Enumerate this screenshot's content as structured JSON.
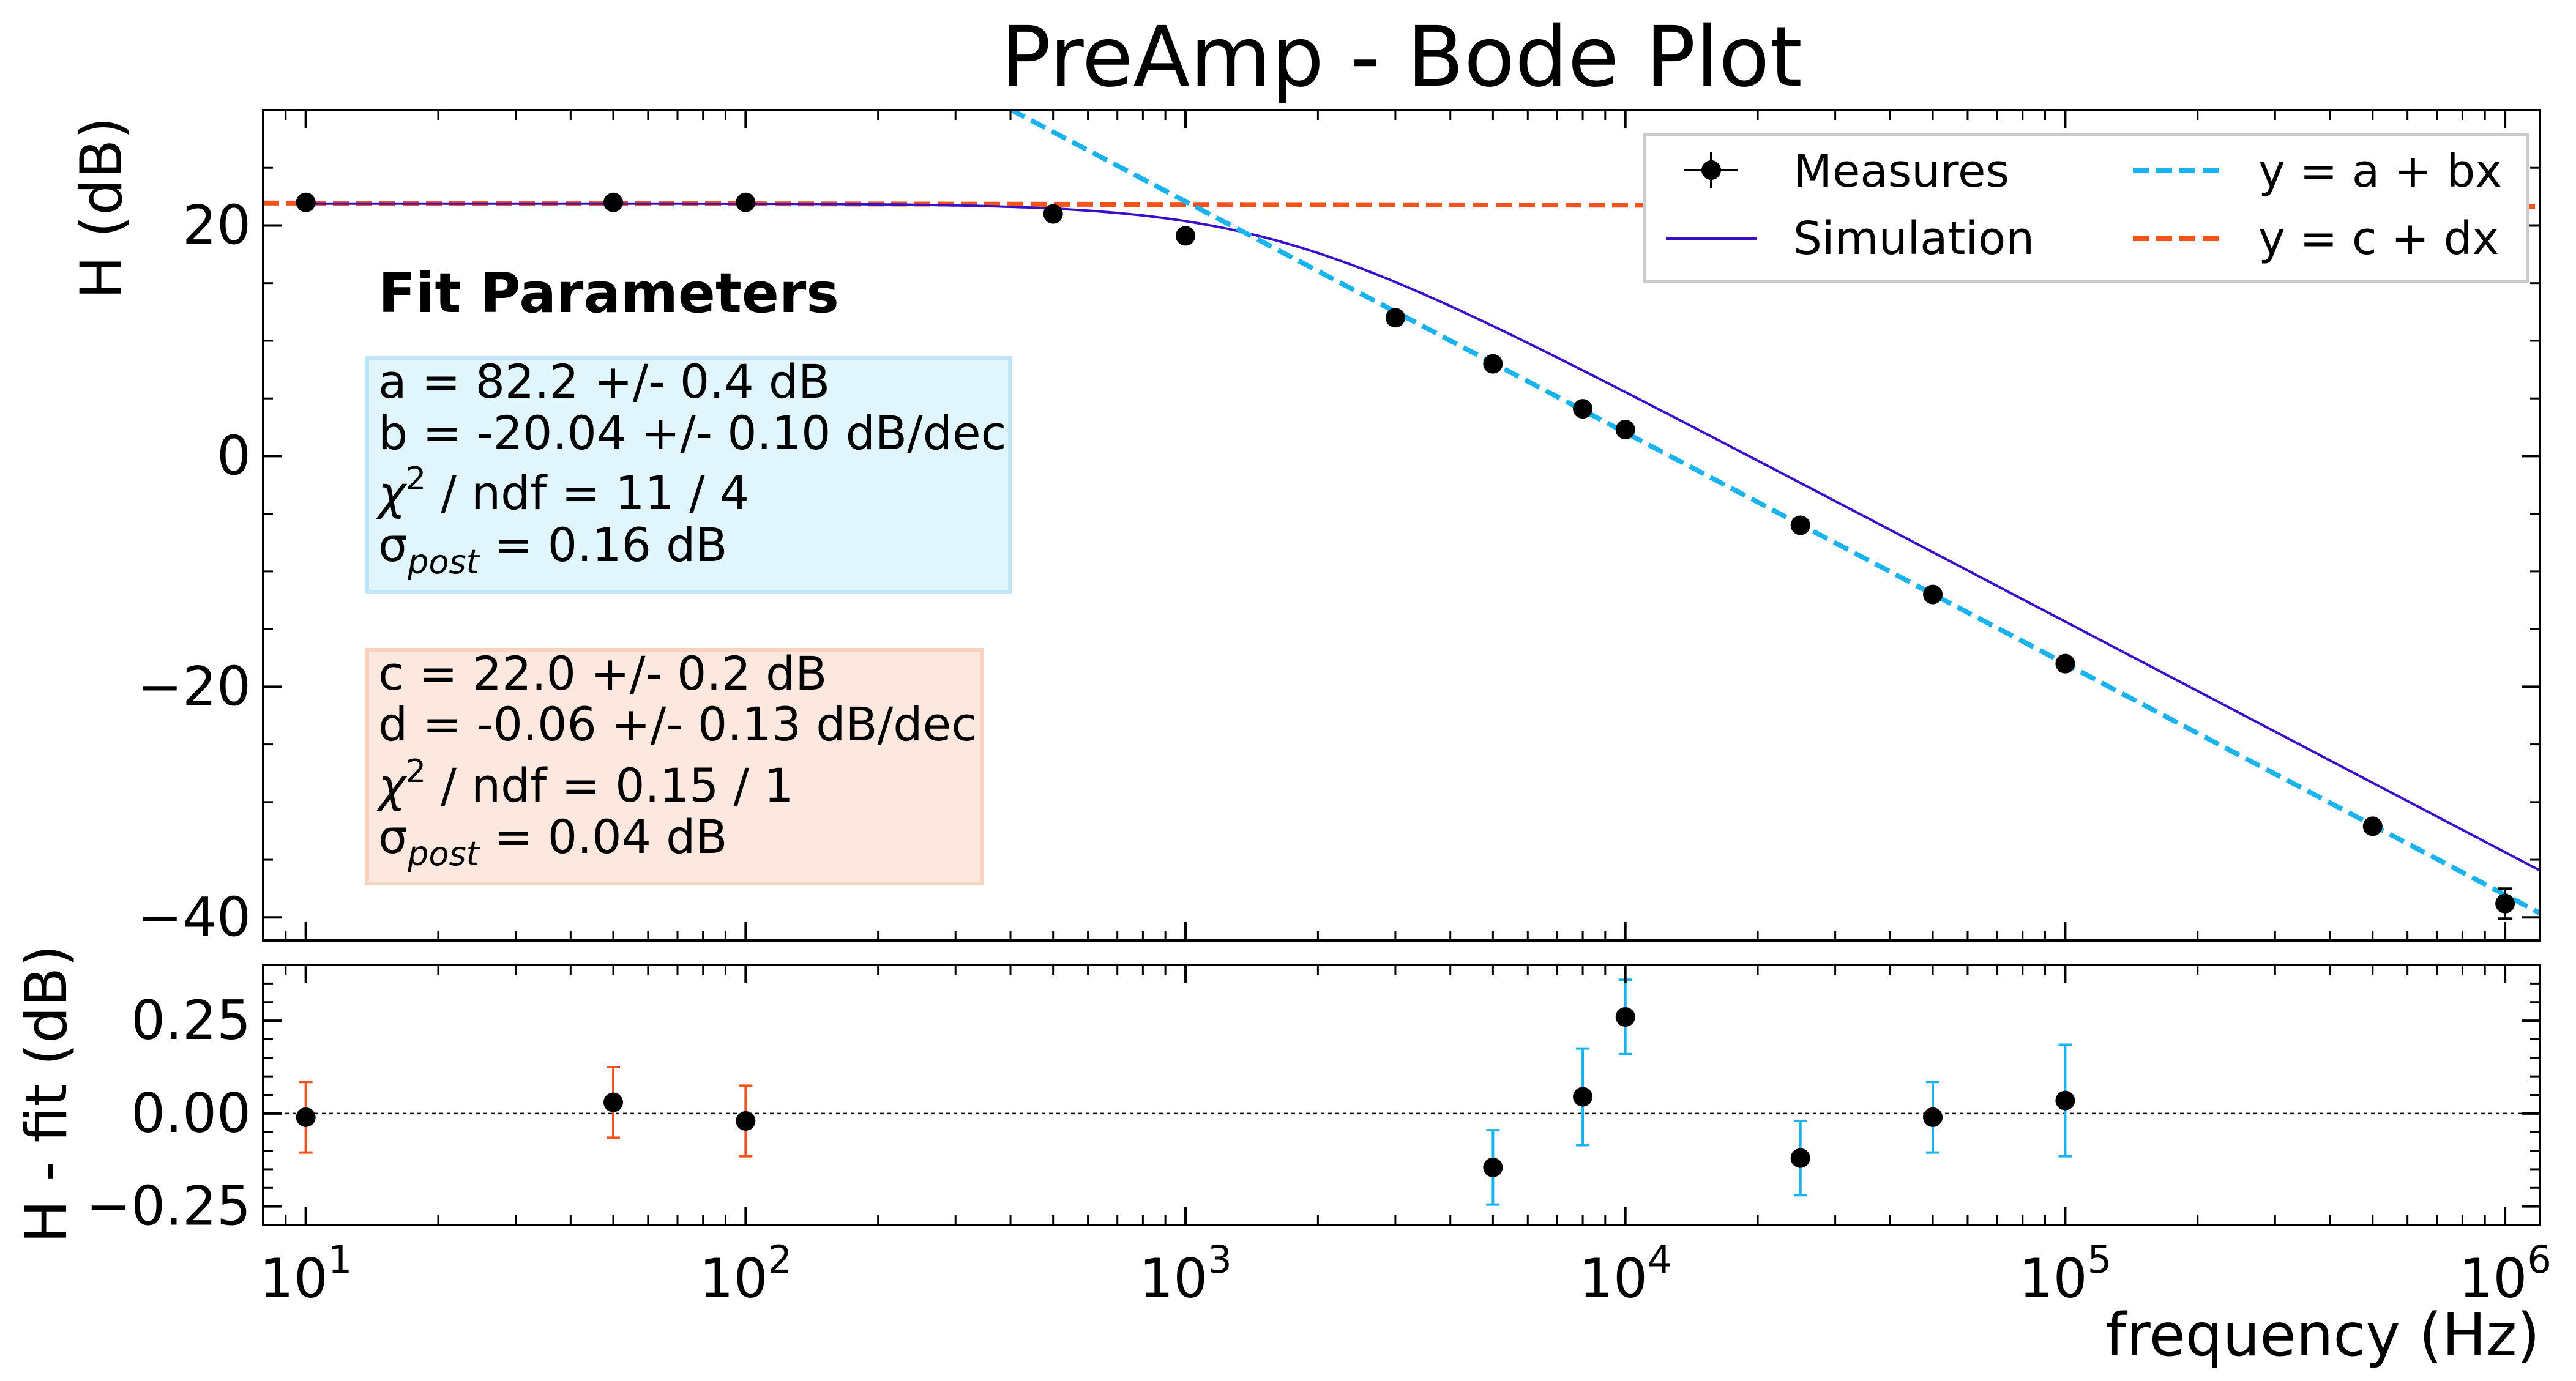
{
  "chart_data": [
    {
      "type": "scatter",
      "panel": "main",
      "title": "PreAmp - Bode Plot",
      "ylabel": "H (dB)",
      "xscale": "log",
      "xlim": [
        8,
        1200000
      ],
      "ylim": [
        -42,
        30
      ],
      "yticks": [
        20,
        0,
        -20,
        -40
      ],
      "ytick_labels": [
        "20",
        "0",
        "−20",
        "−40"
      ],
      "grid": false,
      "legend_position": "top-right",
      "legend": [
        "Measures",
        "Simulation",
        "y = a + bx",
        "y = c + dx"
      ],
      "series": [
        {
          "name": "Measures",
          "style": "points-with-errorbars",
          "color": "#000000",
          "x": [
            10,
            50,
            100,
            500,
            1000,
            3000,
            5000,
            8000,
            10000,
            25000,
            50000,
            100000,
            500000,
            1000000
          ],
          "y": [
            22.0,
            22.0,
            22.0,
            21.0,
            19.1,
            12.0,
            8.0,
            4.1,
            2.3,
            -6.0,
            -12.0,
            -18.0,
            -32.1,
            -38.8
          ],
          "yerr": [
            0.1,
            0.1,
            0.1,
            0.1,
            0.1,
            0.1,
            0.1,
            0.1,
            0.1,
            0.1,
            0.1,
            0.1,
            0.1,
            1.3
          ]
        },
        {
          "name": "Simulation",
          "style": "line",
          "color": "#3a0fc9",
          "model": "lowpass",
          "dc_gain_db": 21.9,
          "corner_hz": 1540,
          "x_range": [
            10,
            1200000
          ]
        },
        {
          "name": "y = a + bx",
          "style": "dashed",
          "color": "#1ab2ef",
          "intercept": 82.2,
          "slope_per_decade": -20.04,
          "x_range": [
            400,
            1200000
          ]
        },
        {
          "name": "y = c + dx",
          "style": "dashed",
          "color": "#f2521c",
          "intercept": 22.0,
          "slope_per_decade": -0.06,
          "x_range": [
            8,
            1200000
          ]
        }
      ],
      "annotations": {
        "heading": "Fit Parameters",
        "box_blue": {
          "color": "#e1f5fd",
          "lines": {
            "a": "a = 82.2 +/- 0.4 dB",
            "b": "b = -20.04 +/- 0.10 dB/dec",
            "chi_sup": "2",
            "chi_rest": " / ndf = 11 / 4",
            "sigma_sub": "post",
            "sigma_rest": " = 0.16 dB"
          }
        },
        "box_orange": {
          "color": "#fde8df",
          "lines": {
            "c": "c = 22.0 +/- 0.2 dB",
            "d": "d = -0.06 +/- 0.13 dB/dec",
            "chi_sup": "2",
            "chi_rest": " / ndf = 0.15 / 1",
            "sigma_sub": "post",
            "sigma_rest": " = 0.04 dB"
          }
        },
        "chi_symbol": "χ",
        "sigma_symbol": "σ"
      }
    },
    {
      "type": "scatter",
      "panel": "residuals",
      "ylabel": "H - fit (dB)",
      "xlabel": "frequency (Hz)",
      "xscale": "log",
      "xlim": [
        8,
        1200000
      ],
      "ylim": [
        -0.3,
        0.4
      ],
      "yticks": [
        0.25,
        0.0,
        -0.25
      ],
      "ytick_labels": [
        "0.25",
        "0.00",
        "−0.25"
      ],
      "xtick_values": [
        10,
        100,
        1000,
        10000,
        100000,
        1000000
      ],
      "xtick_base": "10",
      "xtick_exponents": [
        "1",
        "2",
        "3",
        "4",
        "5",
        "6"
      ],
      "reference_line": 0,
      "series": [
        {
          "name": "residuals flat fit",
          "color": "#f2521c",
          "x": [
            10,
            50,
            100
          ],
          "y": [
            -0.01,
            0.03,
            -0.02
          ],
          "yerr": [
            0.095,
            0.095,
            0.095
          ]
        },
        {
          "name": "residuals slope fit",
          "color": "#1ab2ef",
          "x": [
            5000,
            8000,
            10000,
            25000,
            50000,
            100000
          ],
          "y": [
            -0.145,
            0.045,
            0.26,
            -0.12,
            -0.01,
            0.035
          ],
          "yerr": [
            0.1,
            0.13,
            0.1,
            0.1,
            0.095,
            0.15
          ]
        }
      ]
    }
  ],
  "colors": {
    "measures": "#000000",
    "simulation": "#3a0fc9",
    "fit_slope": "#1ab2ef",
    "fit_flat": "#f2521c"
  }
}
